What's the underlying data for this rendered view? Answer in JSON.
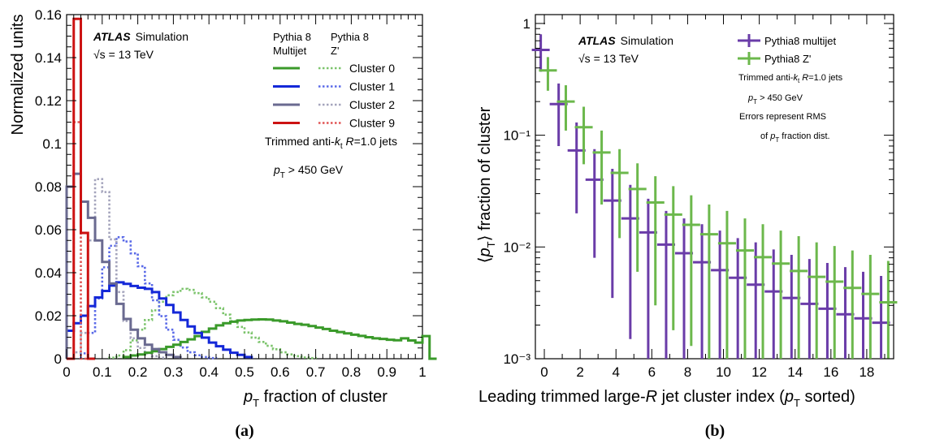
{
  "panels": {
    "a": "(a)",
    "b": "(b)"
  },
  "chart_data": [
    {
      "type": "line",
      "id": "a",
      "title": "",
      "atlas_label": "ATLAS",
      "atlas_sub": "Simulation",
      "energy_label": "√s = 13 TeV",
      "selection_label": "Trimmed anti-kt R=1.0 jets",
      "pt_cut_label": "pT > 450 GeV",
      "xlabel": "pT fraction of cluster",
      "ylabel": "Normalized units",
      "xlim": [
        0,
        1.0
      ],
      "ylim": [
        0,
        0.16
      ],
      "xticks": [
        "0",
        "0.1",
        "0.2",
        "0.3",
        "0.4",
        "0.5",
        "0.6",
        "0.7",
        "0.8",
        "0.9",
        "1"
      ],
      "yticks": [
        "0",
        "0.02",
        "0.04",
        "0.06",
        "0.08",
        "0.1",
        "0.12",
        "0.14",
        "0.16"
      ],
      "legend_headers": [
        "Pythia 8",
        "Multijet",
        "Pythia 8",
        "Z'"
      ],
      "legend_entries": [
        "Cluster 0",
        "Cluster 1",
        "Cluster 2",
        "Cluster 9"
      ],
      "bin_width": 0.02,
      "colors": {
        "c0": "#3a9a2a",
        "c1": "#1428d8",
        "c2": "#6a6a90",
        "c9": "#cc1212",
        "c0z": "#7cc46c",
        "c1z": "#5a6ae8",
        "c2z": "#a4a4bc",
        "c9z": "#e05454"
      },
      "series": [
        {
          "key": "c0",
          "style": "solid",
          "x0": 0.16,
          "values": [
            0.0008,
            0.0015,
            0.002,
            0.0028,
            0.0035,
            0.0045,
            0.0055,
            0.0065,
            0.0078,
            0.009,
            0.0105,
            0.0125,
            0.014,
            0.0155,
            0.0165,
            0.0172,
            0.0178,
            0.018,
            0.0182,
            0.0183,
            0.0182,
            0.0178,
            0.0174,
            0.0168,
            0.0162,
            0.0158,
            0.0152,
            0.0145,
            0.0138,
            0.013,
            0.0124,
            0.0118,
            0.0112,
            0.0106,
            0.01,
            0.0095,
            0.0092,
            0.0088,
            0.0086,
            0.0095,
            0.0085,
            0.0075,
            0.0105,
            0.0
          ]
        },
        {
          "key": "c1",
          "style": "solid",
          "x0": 0.0,
          "values": [
            0.013,
            0.0165,
            0.02,
            0.0245,
            0.0285,
            0.0315,
            0.034,
            0.0355,
            0.0348,
            0.0338,
            0.033,
            0.0325,
            0.031,
            0.028,
            0.025,
            0.0215,
            0.018,
            0.015,
            0.012,
            0.0098,
            0.0075,
            0.0058,
            0.0042,
            0.0028,
            0.0018,
            0.0008
          ]
        },
        {
          "key": "c2",
          "style": "solid",
          "x0": 0.0,
          "values": [
            0.08,
            0.086,
            0.073,
            0.0655,
            0.055,
            0.045,
            0.035,
            0.0255,
            0.0185,
            0.0135,
            0.0095,
            0.0065,
            0.0045,
            0.003,
            0.0018,
            0.0008
          ]
        },
        {
          "key": "c9",
          "style": "solid",
          "x0": 0.0,
          "values": [
            0.0,
            0.158,
            0.0585,
            0.0
          ]
        },
        {
          "key": "c0z",
          "style": "dotted",
          "x0": 0.12,
          "values": [
            0.0005,
            0.0015,
            0.004,
            0.0085,
            0.0135,
            0.018,
            0.0225,
            0.0265,
            0.0295,
            0.031,
            0.0325,
            0.032,
            0.0305,
            0.0285,
            0.0265,
            0.0235,
            0.0205,
            0.0175,
            0.0148,
            0.0122,
            0.0098,
            0.0078,
            0.006,
            0.0044,
            0.003,
            0.002,
            0.0012,
            0.0006,
            0.0003
          ]
        },
        {
          "key": "c1z",
          "style": "dotted",
          "x0": 0.04,
          "values": [
            0.0025,
            0.012,
            0.028,
            0.0425,
            0.0525,
            0.0565,
            0.0545,
            0.049,
            0.043,
            0.035,
            0.0272,
            0.0198,
            0.0135,
            0.0088,
            0.0052,
            0.003,
            0.0016,
            0.0008,
            0.0003
          ]
        },
        {
          "key": "c2z",
          "style": "dotted",
          "x0": 0.02,
          "values": [
            0.003,
            0.012,
            0.055,
            0.0835,
            0.0775,
            0.0555,
            0.031,
            0.0175,
            0.0095,
            0.005,
            0.0025,
            0.0012,
            0.0005
          ]
        },
        {
          "key": "c9z",
          "style": "dotted",
          "x0": 0.0,
          "values": [
            0.0,
            0.11,
            0.0,
            0.0
          ]
        }
      ]
    },
    {
      "type": "scatter",
      "id": "b",
      "title": "",
      "atlas_label": "ATLAS",
      "atlas_sub": "Simulation",
      "energy_label": "√s = 13 TeV",
      "xlabel": "Leading trimmed large-R jet cluster index (pT sorted)",
      "ylabel": "⟨pT⟩ fraction of cluster",
      "xlim": [
        -0.5,
        19.5
      ],
      "ylim": [
        0.001,
        1.2
      ],
      "log_y": true,
      "xticks": [
        "0",
        "2",
        "4",
        "6",
        "8",
        "10",
        "12",
        "14",
        "16",
        "18"
      ],
      "yticks": [
        "1",
        "10⁻¹",
        "10⁻²",
        "10⁻³"
      ],
      "legend_entries": [
        "Pythia8 multijet",
        "Pythia8 Z'"
      ],
      "notes": [
        "Trimmed anti-kt R=1.0 jets",
        "pT > 450 GeV",
        "Errors represent RMS",
        "of pT fraction dist."
      ],
      "colors": {
        "multijet": "#6a3ca8",
        "zprime": "#6cb84c"
      },
      "series": [
        {
          "name": "Pythia8 multijet",
          "key": "multijet",
          "offset": -0.2,
          "x": [
            0,
            1,
            2,
            3,
            4,
            5,
            6,
            7,
            8,
            9,
            10,
            11,
            12,
            13,
            14,
            15,
            16,
            17,
            18,
            19
          ],
          "y": [
            0.58,
            0.19,
            0.073,
            0.04,
            0.026,
            0.018,
            0.0135,
            0.0105,
            0.0088,
            0.0073,
            0.0062,
            0.0053,
            0.0046,
            0.004,
            0.0035,
            0.0031,
            0.0028,
            0.0025,
            0.0023,
            0.0021
          ],
          "y_lo": [
            0.37,
            0.08,
            0.02,
            0.008,
            0.0035,
            0.0015,
            0.001,
            0.001,
            0.001,
            0.001,
            0.001,
            0.001,
            0.001,
            0.001,
            0.001,
            0.001,
            0.001,
            0.001,
            0.001,
            0.001
          ],
          "y_hi": [
            0.8,
            0.29,
            0.13,
            0.075,
            0.05,
            0.036,
            0.027,
            0.021,
            0.018,
            0.016,
            0.014,
            0.012,
            0.011,
            0.0095,
            0.0085,
            0.0078,
            0.0072,
            0.0066,
            0.006,
            0.0055
          ]
        },
        {
          "name": "Pythia8 Z'",
          "key": "zprime",
          "offset": 0.2,
          "x": [
            0,
            1,
            2,
            3,
            4,
            5,
            6,
            7,
            8,
            9,
            10,
            11,
            12,
            13,
            14,
            15,
            16,
            17,
            18,
            19
          ],
          "y": [
            0.38,
            0.2,
            0.118,
            0.07,
            0.046,
            0.033,
            0.025,
            0.0195,
            0.0158,
            0.013,
            0.0108,
            0.0093,
            0.0081,
            0.0071,
            0.0061,
            0.0054,
            0.0049,
            0.0043,
            0.0038,
            0.0032
          ],
          "y_lo": [
            0.25,
            0.11,
            0.055,
            0.024,
            0.012,
            0.006,
            0.003,
            0.0018,
            0.0013,
            0.001,
            0.001,
            0.001,
            0.001,
            0.001,
            0.001,
            0.001,
            0.001,
            0.001,
            0.001,
            0.001
          ],
          "y_hi": [
            0.5,
            0.28,
            0.18,
            0.11,
            0.075,
            0.056,
            0.043,
            0.035,
            0.029,
            0.024,
            0.021,
            0.018,
            0.016,
            0.014,
            0.0125,
            0.011,
            0.0102,
            0.0093,
            0.0085,
            0.0075
          ]
        }
      ]
    }
  ]
}
